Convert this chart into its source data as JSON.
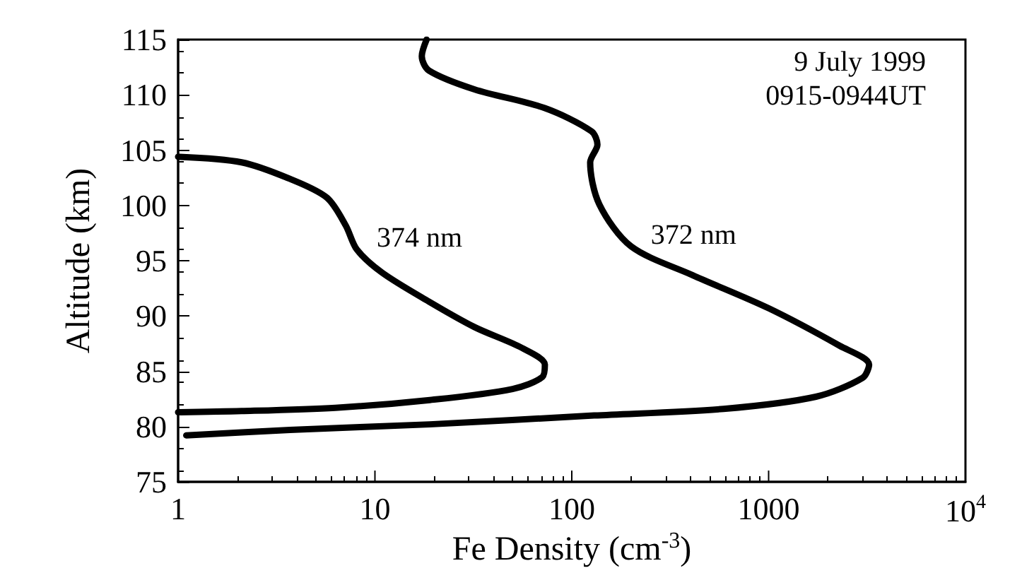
{
  "chart_data": {
    "type": "line",
    "xlabel": "Fe Density (cm$^{-3}$)",
    "ylabel": "Altitude (km)",
    "log": "x",
    "xlim": [
      1,
      10000
    ],
    "xticks": [
      1,
      10,
      100,
      1000,
      {
        "value": 10000,
        "label": "10$^{4}$"
      }
    ],
    "ylim": [
      75,
      115
    ],
    "yticks": [
      75,
      80,
      85,
      90,
      95,
      100,
      105,
      110,
      115
    ],
    "grid": false,
    "legend": false,
    "marker": "none",
    "line_style": "solid",
    "annotations": [
      "9 July 1999",
      "0915-0944UT"
    ],
    "series": [
      {
        "name": "374 nm",
        "color": "#000000",
        "x": [
          1,
          2.1,
          3.7,
          5.7,
          7.1,
          8.1,
          10.9,
          18.8,
          32,
          56,
          73,
          71,
          50,
          19,
          6.3,
          2.1,
          1
        ],
        "values": [
          104.4,
          103.9,
          102.4,
          100.7,
          98.2,
          96.0,
          93.9,
          91.3,
          89.0,
          87.1,
          85.6,
          84.5,
          83.4,
          82.4,
          81.7,
          81.4,
          81.3
        ]
      },
      {
        "name": "372 nm",
        "color": "#000000",
        "x": [
          18.3,
          17.3,
          18.8,
          32,
          73,
          126,
          135,
          124,
          138,
          200,
          410,
          1000,
          2300,
          3240,
          3000,
          1740,
          590,
          130,
          19,
          3.7,
          1.1
        ],
        "values": [
          115,
          113.5,
          112.2,
          110.5,
          108.8,
          106.7,
          105.5,
          103.9,
          100.1,
          96.3,
          93.7,
          90.7,
          87.3,
          85.6,
          84.4,
          82.7,
          81.6,
          81.0,
          80.2,
          79.7,
          79.2
        ]
      }
    ]
  }
}
